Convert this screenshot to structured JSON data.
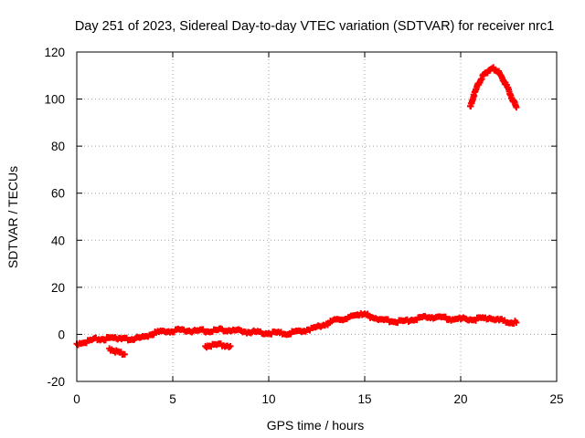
{
  "chart_data": {
    "type": "scatter",
    "title": "Day 251 of 2023, Sidereal Day-to-day VTEC variation (SDTVAR) for receiver nrc1",
    "xlabel": "GPS time / hours",
    "ylabel": "SDTVAR / TECUs",
    "xlim": [
      0,
      25
    ],
    "ylim": [
      -20,
      120
    ],
    "xticks": [
      0,
      5,
      10,
      15,
      20,
      25
    ],
    "xtick_labels": [
      "0",
      "5",
      "10",
      "15",
      "20",
      "25"
    ],
    "yticks": [
      -20,
      0,
      20,
      40,
      60,
      80,
      100,
      120
    ],
    "ytick_labels": [
      "-20",
      "0",
      "20",
      "40",
      "60",
      "80",
      "100",
      "120"
    ],
    "grid": true,
    "marker": "+",
    "series": [
      {
        "name": "nrc1 SDTVAR main",
        "color": "#ff0000",
        "points": [
          [
            0.0,
            -4
          ],
          [
            0.5,
            -3
          ],
          [
            1.0,
            -2
          ],
          [
            1.5,
            -2
          ],
          [
            2.0,
            -1.5
          ],
          [
            2.4,
            -1.5
          ],
          [
            2.6,
            -2
          ],
          [
            3.0,
            -2
          ],
          [
            3.5,
            -1
          ],
          [
            4.0,
            0.5
          ],
          [
            4.5,
            1.5
          ],
          [
            5.0,
            1.5
          ],
          [
            5.5,
            2
          ],
          [
            6.0,
            1.5
          ],
          [
            6.5,
            1.5
          ],
          [
            7.0,
            1.5
          ],
          [
            7.5,
            2
          ],
          [
            8.0,
            2
          ],
          [
            8.5,
            1.5
          ],
          [
            9.0,
            1
          ],
          [
            9.5,
            1
          ],
          [
            10.0,
            0.5
          ],
          [
            10.5,
            0.5
          ],
          [
            11.0,
            0.5
          ],
          [
            11.5,
            1
          ],
          [
            12.0,
            2
          ],
          [
            12.5,
            3
          ],
          [
            13.0,
            4.5
          ],
          [
            13.5,
            6
          ],
          [
            14.0,
            7
          ],
          [
            14.5,
            8
          ],
          [
            14.8,
            9
          ],
          [
            15.0,
            8.5
          ],
          [
            15.5,
            7
          ],
          [
            16.0,
            6
          ],
          [
            16.5,
            5.5
          ],
          [
            17.0,
            5.5
          ],
          [
            17.5,
            6.5
          ],
          [
            18.0,
            7
          ],
          [
            18.5,
            7.5
          ],
          [
            19.0,
            7
          ],
          [
            19.5,
            6.5
          ],
          [
            20.0,
            6.5
          ],
          [
            20.5,
            6.5
          ],
          [
            21.0,
            6.5
          ],
          [
            21.5,
            7
          ],
          [
            22.0,
            6
          ],
          [
            22.5,
            5.5
          ],
          [
            22.9,
            5
          ]
        ]
      },
      {
        "name": "nrc1 SDTVAR dip 1",
        "color": "#ff0000",
        "points": [
          [
            1.7,
            -6
          ],
          [
            2.0,
            -7
          ],
          [
            2.3,
            -8
          ],
          [
            2.5,
            -8.5
          ]
        ]
      },
      {
        "name": "nrc1 SDTVAR dip 2",
        "color": "#ff0000",
        "points": [
          [
            6.7,
            -5
          ],
          [
            7.0,
            -4.5
          ],
          [
            7.5,
            -4.5
          ],
          [
            8.0,
            -5
          ]
        ]
      },
      {
        "name": "nrc1 SDTVAR peak",
        "color": "#ff0000",
        "points": [
          [
            20.5,
            97
          ],
          [
            20.7,
            102
          ],
          [
            20.9,
            106
          ],
          [
            21.1,
            109
          ],
          [
            21.3,
            111
          ],
          [
            21.5,
            112.5
          ],
          [
            21.7,
            113
          ],
          [
            21.9,
            112
          ],
          [
            22.1,
            110
          ],
          [
            22.3,
            107
          ],
          [
            22.5,
            104
          ],
          [
            22.7,
            100
          ],
          [
            22.9,
            96.5
          ]
        ]
      }
    ]
  }
}
